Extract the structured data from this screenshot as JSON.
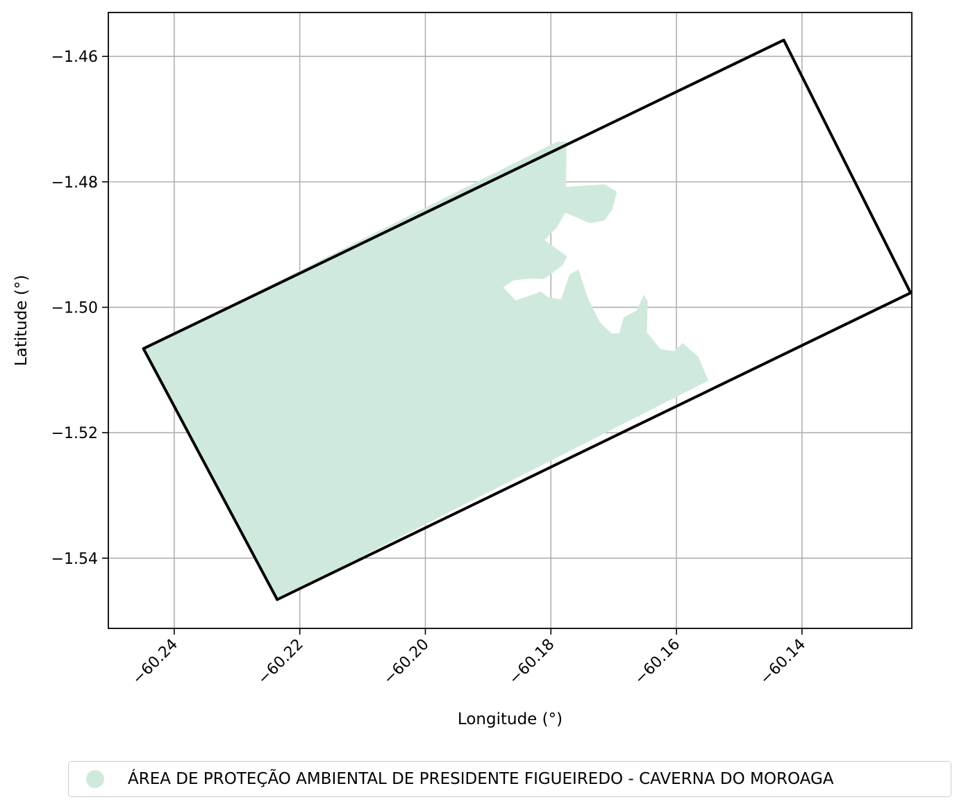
{
  "chart_data": {
    "type": "map",
    "xlabel": "Longitude (°)",
    "ylabel": "Latitude (°)",
    "xlim": [
      -60.2505,
      -60.1225
    ],
    "ylim": [
      -1.5512,
      -1.453
    ],
    "xticks": [
      {
        "value": -60.24,
        "label": "−60.24"
      },
      {
        "value": -60.22,
        "label": "−60.22"
      },
      {
        "value": -60.2,
        "label": "−60.20"
      },
      {
        "value": -60.18,
        "label": "−60.18"
      },
      {
        "value": -60.16,
        "label": "−60.16"
      },
      {
        "value": -60.14,
        "label": "−60.14"
      }
    ],
    "yticks": [
      {
        "value": -1.46,
        "label": "−1.46"
      },
      {
        "value": -1.48,
        "label": "−1.48"
      },
      {
        "value": -1.5,
        "label": "−1.50"
      },
      {
        "value": -1.52,
        "label": "−1.52"
      },
      {
        "value": -1.54,
        "label": "−1.54"
      }
    ],
    "grid": true,
    "legend_position": "bottom-center",
    "boundary": {
      "color": "#000000",
      "vertices": [
        [
          -60.2449,
          -1.5066
        ],
        [
          -60.2236,
          -1.5466
        ],
        [
          -60.1227,
          -1.4977
        ],
        [
          -60.1429,
          -1.4574
        ],
        [
          -60.2449,
          -1.5066
        ]
      ]
    },
    "protected_area": {
      "name": "ÁREA DE PROTEÇÃO AMBIENTAL DE PRESIDENTE FIGUEIREDO - CAVERNA DO MOROAGA",
      "color": "#cfeadd",
      "outer": [
        [
          -60.2449,
          -1.5066
        ],
        [
          -60.179,
          -1.4736
        ],
        [
          -60.1775,
          -1.4736
        ],
        [
          -60.1776,
          -1.4808
        ],
        [
          -60.1714,
          -1.4804
        ],
        [
          -60.1695,
          -1.4816
        ],
        [
          -60.1702,
          -1.4844
        ],
        [
          -60.1715,
          -1.4862
        ],
        [
          -60.1738,
          -1.4866
        ],
        [
          -60.1777,
          -1.4849
        ],
        [
          -60.179,
          -1.4872
        ],
        [
          -60.181,
          -1.4893
        ],
        [
          -60.1774,
          -1.4919
        ],
        [
          -60.1782,
          -1.4934
        ],
        [
          -60.1811,
          -1.4955
        ],
        [
          -60.1831,
          -1.4954
        ],
        [
          -60.1859,
          -1.4957
        ],
        [
          -60.1876,
          -1.4968
        ],
        [
          -60.1856,
          -1.4989
        ],
        [
          -60.1816,
          -1.4975
        ],
        [
          -60.1804,
          -1.4984
        ],
        [
          -60.178,
          -1.4988
        ],
        [
          -60.1773,
          -1.5
        ],
        [
          -60.1767,
          -1.5012
        ],
        [
          -60.1792,
          -1.5009
        ],
        [
          -60.178,
          -1.4976
        ],
        [
          -60.177,
          -1.4947
        ],
        [
          -60.1756,
          -1.494
        ],
        [
          -60.174,
          -1.4988
        ],
        [
          -60.1722,
          -1.5024
        ],
        [
          -60.1703,
          -1.5042
        ],
        [
          -60.1691,
          -1.5041
        ],
        [
          -60.1684,
          -1.5016
        ],
        [
          -60.1663,
          -1.5005
        ],
        [
          -60.1652,
          -1.498
        ],
        [
          -60.1646,
          -1.499
        ],
        [
          -60.1647,
          -1.504
        ],
        [
          -60.1625,
          -1.5067
        ],
        [
          -60.1604,
          -1.507
        ],
        [
          -60.159,
          -1.5057
        ],
        [
          -60.1565,
          -1.5079
        ],
        [
          -60.1549,
          -1.5117
        ],
        [
          -60.2236,
          -1.5466
        ],
        [
          -60.2449,
          -1.5066
        ]
      ]
    }
  },
  "legend": {
    "label": "ÁREA DE PROTEÇÃO AMBIENTAL DE PRESIDENTE FIGUEIREDO - CAVERNA DO MOROAGA",
    "color": "#cfeadd"
  }
}
